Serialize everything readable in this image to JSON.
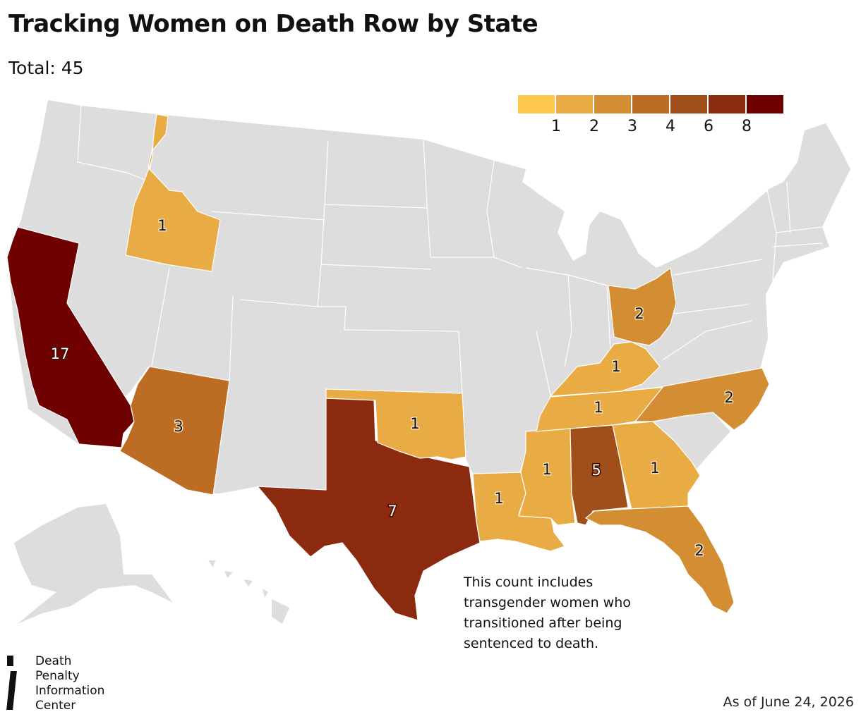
{
  "header": {
    "title": "Tracking Women on Death Row by State",
    "subtitle": "Total: 45"
  },
  "legend": {
    "colors": [
      "#fec84d",
      "#e9ab44",
      "#d38e33",
      "#bd6c24",
      "#a04e1a",
      "#8b2a0e",
      "#6f0000"
    ],
    "labels": [
      "1",
      "2",
      "3",
      "4",
      "6",
      "8"
    ]
  },
  "map": {
    "base_color": "#dddddd",
    "states": [
      {
        "id": "california",
        "name": "California",
        "count": "17",
        "color": "#6f0000"
      },
      {
        "id": "texas",
        "name": "Texas",
        "count": "7",
        "color": "#8b2a0e"
      },
      {
        "id": "alabama",
        "name": "Alabama",
        "count": "5",
        "color": "#a04e1a"
      },
      {
        "id": "arizona",
        "name": "Arizona",
        "count": "3",
        "color": "#bd6c24"
      },
      {
        "id": "ohio",
        "name": "Ohio",
        "count": "2",
        "color": "#d38e33"
      },
      {
        "id": "north-carolina",
        "name": "North Carolina",
        "count": "2",
        "color": "#d38e33"
      },
      {
        "id": "florida",
        "name": "Florida",
        "count": "2",
        "color": "#d38e33"
      },
      {
        "id": "idaho",
        "name": "Idaho",
        "count": "1",
        "color": "#e9ab44"
      },
      {
        "id": "oklahoma",
        "name": "Oklahoma",
        "count": "1",
        "color": "#e9ab44"
      },
      {
        "id": "kentucky",
        "name": "Kentucky",
        "count": "1",
        "color": "#e9ab44"
      },
      {
        "id": "tennessee",
        "name": "Tennessee",
        "count": "1",
        "color": "#e9ab44"
      },
      {
        "id": "mississippi",
        "name": "Mississippi",
        "count": "1",
        "color": "#e9ab44"
      },
      {
        "id": "georgia",
        "name": "Georgia",
        "count": "1",
        "color": "#e9ab44"
      },
      {
        "id": "louisiana",
        "name": "Louisiana",
        "count": "1",
        "color": "#e9ab44"
      }
    ]
  },
  "note": "This count includes transgender women who transitioned after being sentenced to death.",
  "footer": {
    "logo_lines": [
      "Death",
      "Penalty",
      "Information",
      "Center"
    ],
    "date": "As of June 24, 2026"
  }
}
